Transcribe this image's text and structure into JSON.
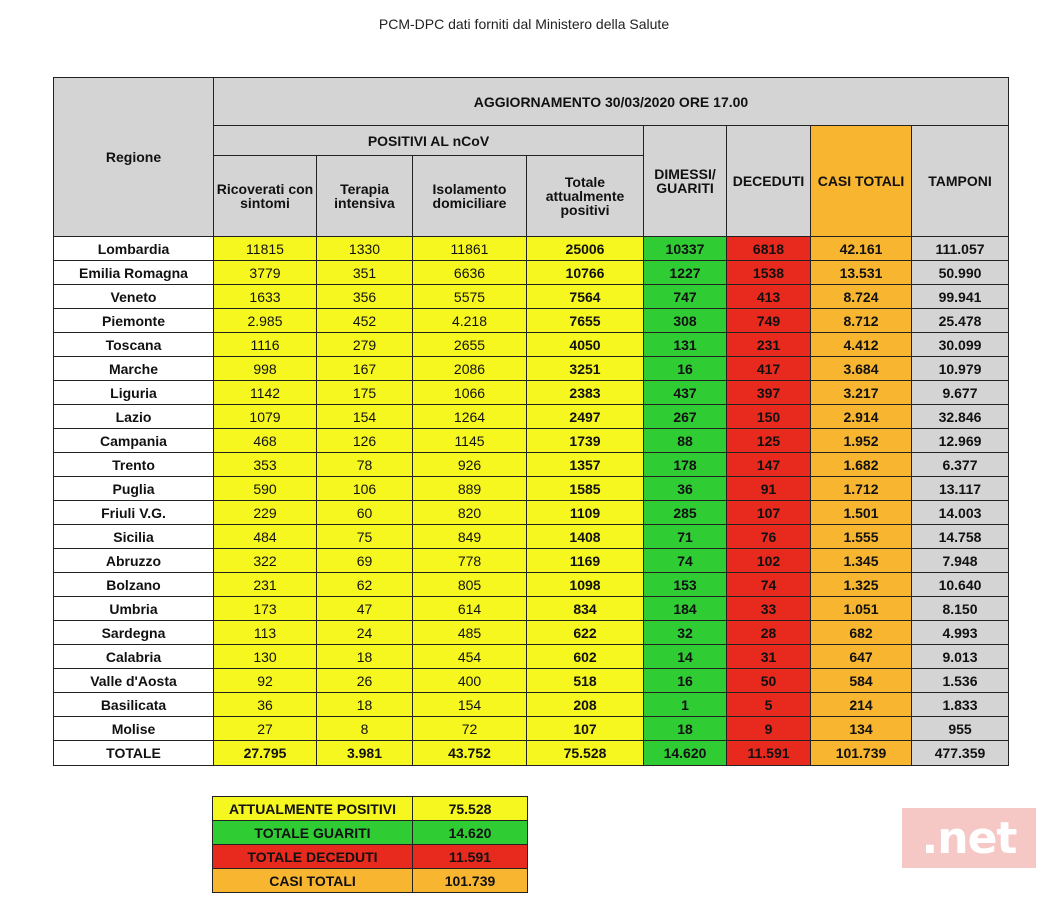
{
  "source": "PCM-DPC dati forniti dal Ministero della Salute",
  "header": {
    "region": "Regione",
    "title": "AGGIORNAMENTO 30/03/2020 ORE 17.00",
    "positivi_group": "POSITIVI AL nCoV",
    "ricoverati": "Ricoverati con sintomi",
    "terapia": "Terapia intensiva",
    "isolamento": "Isolamento domiciliare",
    "totale_positivi": "Totale attualmente positivi",
    "dimessi": "DIMESSI/ GUARITI",
    "deceduti": "DECEDUTI",
    "casi_totali": "CASI TOTALI",
    "tamponi": "TAMPONI"
  },
  "rows": [
    {
      "region": "Lombardia",
      "ric": "11815",
      "ter": "1330",
      "iso": "11861",
      "tot": "25006",
      "dim": "10337",
      "dec": "6818",
      "casi": "42.161",
      "tamp": "111.057"
    },
    {
      "region": "Emilia Romagna",
      "ric": "3779",
      "ter": "351",
      "iso": "6636",
      "tot": "10766",
      "dim": "1227",
      "dec": "1538",
      "casi": "13.531",
      "tamp": "50.990"
    },
    {
      "region": "Veneto",
      "ric": "1633",
      "ter": "356",
      "iso": "5575",
      "tot": "7564",
      "dim": "747",
      "dec": "413",
      "casi": "8.724",
      "tamp": "99.941"
    },
    {
      "region": "Piemonte",
      "ric": "2.985",
      "ter": "452",
      "iso": "4.218",
      "tot": "7655",
      "dim": "308",
      "dec": "749",
      "casi": "8.712",
      "tamp": "25.478"
    },
    {
      "region": "Toscana",
      "ric": "1116",
      "ter": "279",
      "iso": "2655",
      "tot": "4050",
      "dim": "131",
      "dec": "231",
      "casi": "4.412",
      "tamp": "30.099"
    },
    {
      "region": "Marche",
      "ric": "998",
      "ter": "167",
      "iso": "2086",
      "tot": "3251",
      "dim": "16",
      "dec": "417",
      "casi": "3.684",
      "tamp": "10.979"
    },
    {
      "region": "Liguria",
      "ric": "1142",
      "ter": "175",
      "iso": "1066",
      "tot": "2383",
      "dim": "437",
      "dec": "397",
      "casi": "3.217",
      "tamp": "9.677"
    },
    {
      "region": "Lazio",
      "ric": "1079",
      "ter": "154",
      "iso": "1264",
      "tot": "2497",
      "dim": "267",
      "dec": "150",
      "casi": "2.914",
      "tamp": "32.846"
    },
    {
      "region": "Campania",
      "ric": "468",
      "ter": "126",
      "iso": "1145",
      "tot": "1739",
      "dim": "88",
      "dec": "125",
      "casi": "1.952",
      "tamp": "12.969"
    },
    {
      "region": "Trento",
      "ric": "353",
      "ter": "78",
      "iso": "926",
      "tot": "1357",
      "dim": "178",
      "dec": "147",
      "casi": "1.682",
      "tamp": "6.377"
    },
    {
      "region": "Puglia",
      "ric": "590",
      "ter": "106",
      "iso": "889",
      "tot": "1585",
      "dim": "36",
      "dec": "91",
      "casi": "1.712",
      "tamp": "13.117"
    },
    {
      "region": "Friuli V.G.",
      "ric": "229",
      "ter": "60",
      "iso": "820",
      "tot": "1109",
      "dim": "285",
      "dec": "107",
      "casi": "1.501",
      "tamp": "14.003"
    },
    {
      "region": "Sicilia",
      "ric": "484",
      "ter": "75",
      "iso": "849",
      "tot": "1408",
      "dim": "71",
      "dec": "76",
      "casi": "1.555",
      "tamp": "14.758"
    },
    {
      "region": "Abruzzo",
      "ric": "322",
      "ter": "69",
      "iso": "778",
      "tot": "1169",
      "dim": "74",
      "dec": "102",
      "casi": "1.345",
      "tamp": "7.948"
    },
    {
      "region": "Bolzano",
      "ric": "231",
      "ter": "62",
      "iso": "805",
      "tot": "1098",
      "dim": "153",
      "dec": "74",
      "casi": "1.325",
      "tamp": "10.640"
    },
    {
      "region": "Umbria",
      "ric": "173",
      "ter": "47",
      "iso": "614",
      "tot": "834",
      "dim": "184",
      "dec": "33",
      "casi": "1.051",
      "tamp": "8.150"
    },
    {
      "region": "Sardegna",
      "ric": "113",
      "ter": "24",
      "iso": "485",
      "tot": "622",
      "dim": "32",
      "dec": "28",
      "casi": "682",
      "tamp": "4.993"
    },
    {
      "region": "Calabria",
      "ric": "130",
      "ter": "18",
      "iso": "454",
      "tot": "602",
      "dim": "14",
      "dec": "31",
      "casi": "647",
      "tamp": "9.013"
    },
    {
      "region": "Valle d'Aosta",
      "ric": "92",
      "ter": "26",
      "iso": "400",
      "tot": "518",
      "dim": "16",
      "dec": "50",
      "casi": "584",
      "tamp": "1.536"
    },
    {
      "region": "Basilicata",
      "ric": "36",
      "ter": "18",
      "iso": "154",
      "tot": "208",
      "dim": "1",
      "dec": "5",
      "casi": "214",
      "tamp": "1.833"
    },
    {
      "region": "Molise",
      "ric": "27",
      "ter": "8",
      "iso": "72",
      "tot": "107",
      "dim": "18",
      "dec": "9",
      "casi": "134",
      "tamp": "955"
    }
  ],
  "totals": {
    "region": "TOTALE",
    "ric": "27.795",
    "ter": "3.981",
    "iso": "43.752",
    "tot": "75.528",
    "dim": "14.620",
    "dec": "11.591",
    "casi": "101.739",
    "tamp": "477.359"
  },
  "summary": [
    {
      "label": "ATTUALMENTE POSITIVI",
      "value": "75.528",
      "color": "#f7f720"
    },
    {
      "label": "TOTALE GUARITI",
      "value": "14.620",
      "color": "#2fcc34"
    },
    {
      "label": "TOTALE DECEDUTI",
      "value": "11.591",
      "color": "#e8291e"
    },
    {
      "label": "CASI TOTALI",
      "value": "101.739",
      "color": "#f8b530"
    }
  ],
  "watermark": ".net",
  "colors": {
    "header_grey": "#d4d4d4",
    "positivi_yellow": "#f7f720",
    "guariti_green": "#2fcc34",
    "deceduti_red": "#e8291e",
    "casi_orange": "#f8b530"
  }
}
